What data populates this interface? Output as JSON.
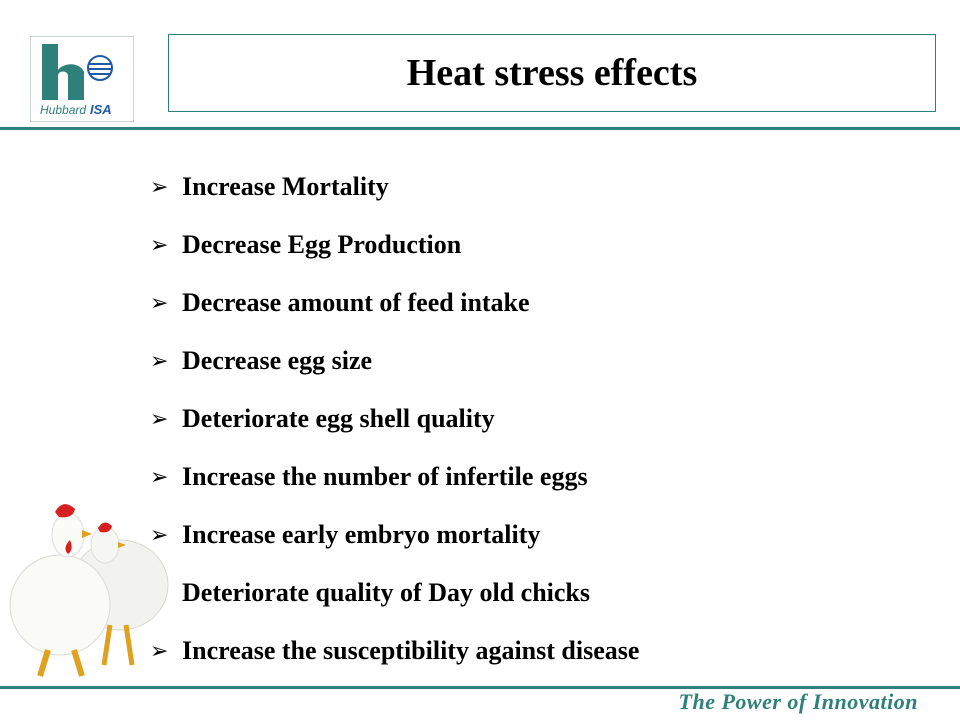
{
  "logo": {
    "brand_text": "Hubbard",
    "brand_suffix": "ISA"
  },
  "title": "Heat stress effects",
  "bullets": [
    "Increase Mortality",
    "Decrease Egg Production",
    "Decrease amount of feed intake",
    "Decrease egg size",
    "Deteriorate egg shell quality",
    "Increase the number of infertile eggs",
    "Increase early embryo mortality",
    "Deteriorate quality of Day old chicks",
    "Increase the susceptibility against disease"
  ],
  "bullet_icon": "arrowhead-bullet-icon",
  "footer": "The Power of Innovation",
  "colors": {
    "accent": "#2f7f7a",
    "text": "#000000",
    "logo_blue": "#1f5aa6"
  }
}
